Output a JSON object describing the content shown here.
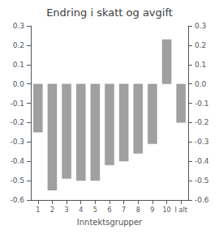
{
  "chart_data": {
    "type": "bar",
    "title": "Endring i skatt og avgift",
    "xlabel": "Inntektsgrupper",
    "categories": [
      "1",
      "2",
      "3",
      "4",
      "5",
      "6",
      "7",
      "8",
      "9",
      "10",
      "I alt"
    ],
    "values": [
      -0.25,
      -0.55,
      -0.49,
      -0.5,
      -0.5,
      -0.42,
      -0.4,
      -0.36,
      -0.31,
      0.23,
      -0.2
    ],
    "color": "#a0a0a0",
    "ylim": [
      -0.6,
      0.3
    ],
    "yticks": [
      -0.6,
      -0.5,
      -0.4,
      -0.3,
      -0.2,
      -0.1,
      {
        "value": 0.0,
        "label": "0.0"
      },
      0.1,
      0.2,
      0.3
    ],
    "y2lim": [
      -0.6,
      0.3
    ],
    "y2ticks": [
      -0.6,
      -0.5,
      -0.4,
      -0.3,
      -0.2,
      -0.1,
      {
        "value": 0.0,
        "label": "0.0"
      },
      0.1,
      0.2,
      0.3
    ],
    "grid": false
  }
}
